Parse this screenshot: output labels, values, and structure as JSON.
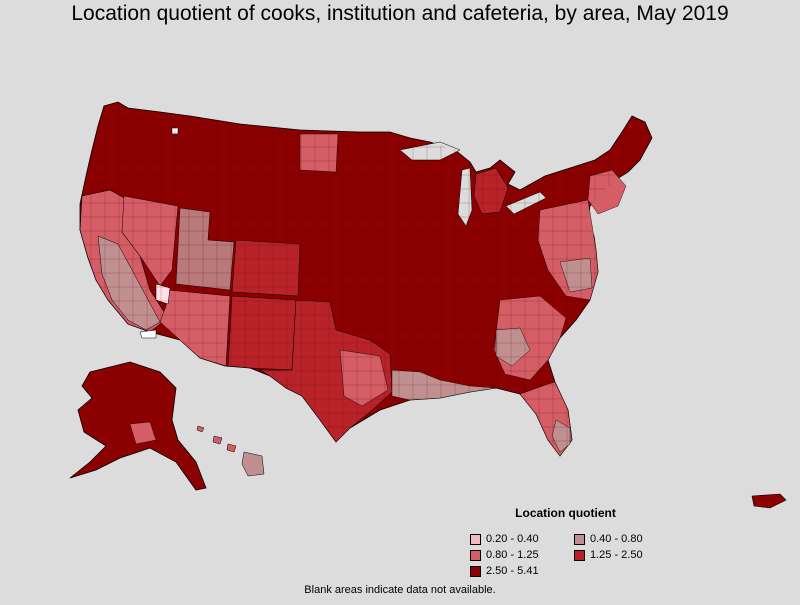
{
  "title": "Location quotient of cooks, institution and cafeteria, by area, May 2019",
  "legend": {
    "title": "Location quotient",
    "items": [
      {
        "label": "0.20 - 0.40",
        "color": "#f4b9c1"
      },
      {
        "label": "0.40 - 0.80",
        "color": "#c09090"
      },
      {
        "label": "0.80 - 1.25",
        "color": "#d55d66"
      },
      {
        "label": "1.25 - 2.50",
        "color": "#b72328"
      },
      {
        "label": "2.50 - 5.41",
        "color": "#8b0000"
      }
    ]
  },
  "footnote": "Blank areas indicate data not available."
}
